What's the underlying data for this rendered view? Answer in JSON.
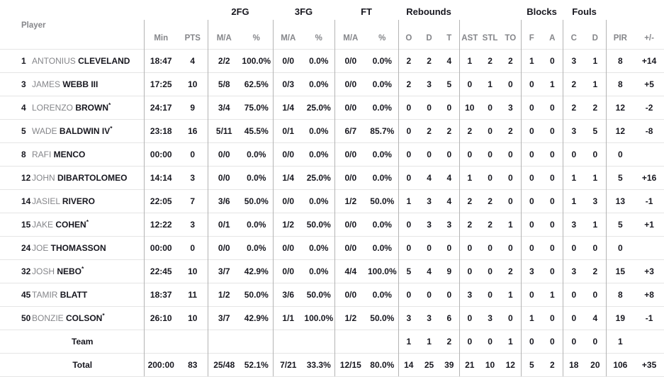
{
  "table": {
    "starter_marker": "*",
    "groups": {
      "fg2": "2FG",
      "fg3": "3FG",
      "ft": "FT",
      "rebounds": "Rebounds",
      "blocks": "Blocks",
      "fouls": "Fouls"
    },
    "columns": {
      "player": "Player",
      "min": "Min",
      "pts": "PTS",
      "fg2_ma": "M/A",
      "fg2_pct": "%",
      "fg3_ma": "M/A",
      "fg3_pct": "%",
      "ft_ma": "M/A",
      "ft_pct": "%",
      "reb_o": "O",
      "reb_d": "D",
      "reb_t": "T",
      "ast": "AST",
      "stl": "STL",
      "to": "TO",
      "blk_f": "F",
      "blk_a": "A",
      "foul_c": "C",
      "foul_d": "D",
      "pir": "PIR",
      "pm": "+/-"
    },
    "rows": [
      {
        "num": "1",
        "first": "ANTONIUS",
        "last": "CLEVELAND",
        "starter": false,
        "min": "18:47",
        "pts": "4",
        "fg2": "2/2",
        "fg2p": "100.0%",
        "fg3": "0/0",
        "fg3p": "0.0%",
        "ft": "0/0",
        "ftp": "0.0%",
        "reb_o": "2",
        "reb_d": "2",
        "reb_t": "4",
        "ast": "1",
        "stl": "2",
        "to": "2",
        "blk_f": "1",
        "blk_a": "0",
        "foul_c": "3",
        "foul_d": "1",
        "pir": "8",
        "pm": "+14"
      },
      {
        "num": "3",
        "first": "JAMES",
        "last": "WEBB III",
        "starter": false,
        "min": "17:25",
        "pts": "10",
        "fg2": "5/8",
        "fg2p": "62.5%",
        "fg3": "0/3",
        "fg3p": "0.0%",
        "ft": "0/0",
        "ftp": "0.0%",
        "reb_o": "2",
        "reb_d": "3",
        "reb_t": "5",
        "ast": "0",
        "stl": "1",
        "to": "0",
        "blk_f": "0",
        "blk_a": "1",
        "foul_c": "2",
        "foul_d": "1",
        "pir": "8",
        "pm": "+5"
      },
      {
        "num": "4",
        "first": "LORENZO",
        "last": "BROWN",
        "starter": true,
        "min": "24:17",
        "pts": "9",
        "fg2": "3/4",
        "fg2p": "75.0%",
        "fg3": "1/4",
        "fg3p": "25.0%",
        "ft": "0/0",
        "ftp": "0.0%",
        "reb_o": "0",
        "reb_d": "0",
        "reb_t": "0",
        "ast": "10",
        "stl": "0",
        "to": "3",
        "blk_f": "0",
        "blk_a": "0",
        "foul_c": "2",
        "foul_d": "2",
        "pir": "12",
        "pm": "-2"
      },
      {
        "num": "5",
        "first": "WADE",
        "last": "BALDWIN IV",
        "starter": true,
        "min": "23:18",
        "pts": "16",
        "fg2": "5/11",
        "fg2p": "45.5%",
        "fg3": "0/1",
        "fg3p": "0.0%",
        "ft": "6/7",
        "ftp": "85.7%",
        "reb_o": "0",
        "reb_d": "2",
        "reb_t": "2",
        "ast": "2",
        "stl": "0",
        "to": "2",
        "blk_f": "0",
        "blk_a": "0",
        "foul_c": "3",
        "foul_d": "5",
        "pir": "12",
        "pm": "-8"
      },
      {
        "num": "8",
        "first": "RAFI",
        "last": "MENCO",
        "starter": false,
        "min": "00:00",
        "pts": "0",
        "fg2": "0/0",
        "fg2p": "0.0%",
        "fg3": "0/0",
        "fg3p": "0.0%",
        "ft": "0/0",
        "ftp": "0.0%",
        "reb_o": "0",
        "reb_d": "0",
        "reb_t": "0",
        "ast": "0",
        "stl": "0",
        "to": "0",
        "blk_f": "0",
        "blk_a": "0",
        "foul_c": "0",
        "foul_d": "0",
        "pir": "0",
        "pm": ""
      },
      {
        "num": "12",
        "first": "JOHN",
        "last": "DIBARTOLOMEO",
        "starter": false,
        "min": "14:14",
        "pts": "3",
        "fg2": "0/0",
        "fg2p": "0.0%",
        "fg3": "1/4",
        "fg3p": "25.0%",
        "ft": "0/0",
        "ftp": "0.0%",
        "reb_o": "0",
        "reb_d": "4",
        "reb_t": "4",
        "ast": "1",
        "stl": "0",
        "to": "0",
        "blk_f": "0",
        "blk_a": "0",
        "foul_c": "1",
        "foul_d": "1",
        "pir": "5",
        "pm": "+16"
      },
      {
        "num": "14",
        "first": "JASIEL",
        "last": "RIVERO",
        "starter": false,
        "min": "22:05",
        "pts": "7",
        "fg2": "3/6",
        "fg2p": "50.0%",
        "fg3": "0/0",
        "fg3p": "0.0%",
        "ft": "1/2",
        "ftp": "50.0%",
        "reb_o": "1",
        "reb_d": "3",
        "reb_t": "4",
        "ast": "2",
        "stl": "2",
        "to": "0",
        "blk_f": "0",
        "blk_a": "0",
        "foul_c": "1",
        "foul_d": "3",
        "pir": "13",
        "pm": "-1"
      },
      {
        "num": "15",
        "first": "JAKE",
        "last": "COHEN",
        "starter": true,
        "min": "12:22",
        "pts": "3",
        "fg2": "0/1",
        "fg2p": "0.0%",
        "fg3": "1/2",
        "fg3p": "50.0%",
        "ft": "0/0",
        "ftp": "0.0%",
        "reb_o": "0",
        "reb_d": "3",
        "reb_t": "3",
        "ast": "2",
        "stl": "2",
        "to": "1",
        "blk_f": "0",
        "blk_a": "0",
        "foul_c": "3",
        "foul_d": "1",
        "pir": "5",
        "pm": "+1"
      },
      {
        "num": "24",
        "first": "JOE",
        "last": "THOMASSON",
        "starter": false,
        "min": "00:00",
        "pts": "0",
        "fg2": "0/0",
        "fg2p": "0.0%",
        "fg3": "0/0",
        "fg3p": "0.0%",
        "ft": "0/0",
        "ftp": "0.0%",
        "reb_o": "0",
        "reb_d": "0",
        "reb_t": "0",
        "ast": "0",
        "stl": "0",
        "to": "0",
        "blk_f": "0",
        "blk_a": "0",
        "foul_c": "0",
        "foul_d": "0",
        "pir": "0",
        "pm": ""
      },
      {
        "num": "32",
        "first": "JOSH",
        "last": "NEBO",
        "starter": true,
        "min": "22:45",
        "pts": "10",
        "fg2": "3/7",
        "fg2p": "42.9%",
        "fg3": "0/0",
        "fg3p": "0.0%",
        "ft": "4/4",
        "ftp": "100.0%",
        "reb_o": "5",
        "reb_d": "4",
        "reb_t": "9",
        "ast": "0",
        "stl": "0",
        "to": "2",
        "blk_f": "3",
        "blk_a": "0",
        "foul_c": "3",
        "foul_d": "2",
        "pir": "15",
        "pm": "+3"
      },
      {
        "num": "45",
        "first": "TAMIR",
        "last": "BLATT",
        "starter": false,
        "min": "18:37",
        "pts": "11",
        "fg2": "1/2",
        "fg2p": "50.0%",
        "fg3": "3/6",
        "fg3p": "50.0%",
        "ft": "0/0",
        "ftp": "0.0%",
        "reb_o": "0",
        "reb_d": "0",
        "reb_t": "0",
        "ast": "3",
        "stl": "0",
        "to": "1",
        "blk_f": "0",
        "blk_a": "1",
        "foul_c": "0",
        "foul_d": "0",
        "pir": "8",
        "pm": "+8"
      },
      {
        "num": "50",
        "first": "BONZIE",
        "last": "COLSON",
        "starter": true,
        "min": "26:10",
        "pts": "10",
        "fg2": "3/7",
        "fg2p": "42.9%",
        "fg3": "1/1",
        "fg3p": "100.0%",
        "ft": "1/2",
        "ftp": "50.0%",
        "reb_o": "3",
        "reb_d": "3",
        "reb_t": "6",
        "ast": "0",
        "stl": "3",
        "to": "0",
        "blk_f": "1",
        "blk_a": "0",
        "foul_c": "0",
        "foul_d": "4",
        "pir": "19",
        "pm": "-1"
      },
      {
        "label": "Team",
        "min": "",
        "pts": "",
        "fg2": "",
        "fg2p": "",
        "fg3": "",
        "fg3p": "",
        "ft": "",
        "ftp": "",
        "reb_o": "1",
        "reb_d": "1",
        "reb_t": "2",
        "ast": "0",
        "stl": "0",
        "to": "1",
        "blk_f": "0",
        "blk_a": "0",
        "foul_c": "0",
        "foul_d": "0",
        "pir": "1",
        "pm": ""
      },
      {
        "label": "Total",
        "min": "200:00",
        "pts": "83",
        "fg2": "25/48",
        "fg2p": "52.1%",
        "fg3": "7/21",
        "fg3p": "33.3%",
        "ft": "12/15",
        "ftp": "80.0%",
        "reb_o": "14",
        "reb_d": "25",
        "reb_t": "39",
        "ast": "21",
        "stl": "10",
        "to": "12",
        "blk_f": "5",
        "blk_a": "2",
        "foul_c": "18",
        "foul_d": "20",
        "pir": "106",
        "pm": "+35"
      }
    ]
  }
}
